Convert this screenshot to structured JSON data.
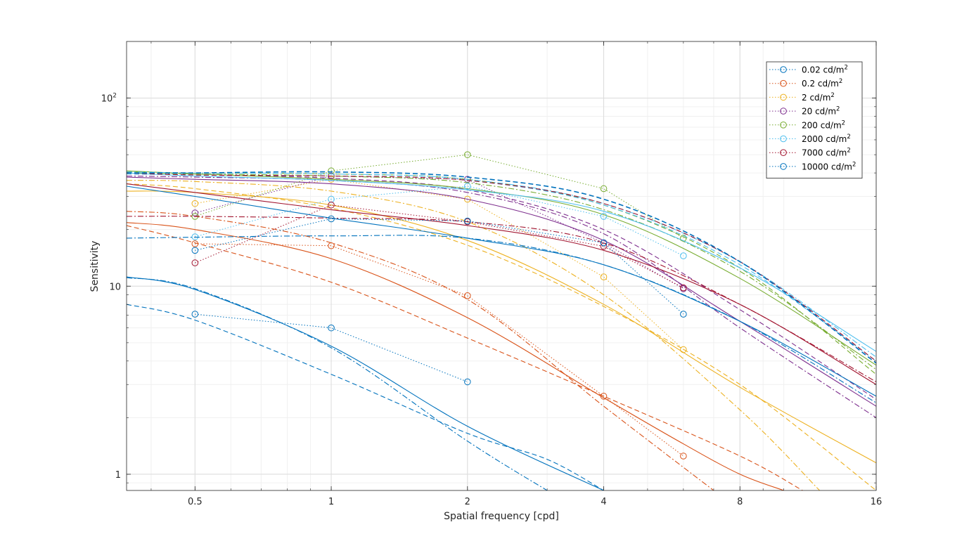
{
  "chart_data": {
    "type": "line",
    "title": "",
    "xlabel": "Spatial frequency [cpd]",
    "ylabel": "Sensitivity",
    "xscale": "log",
    "yscale": "log",
    "xlim": [
      0.353,
      16
    ],
    "ylim": [
      0.82,
      200
    ],
    "xticks": [
      0.5,
      1,
      2,
      4,
      8,
      16
    ],
    "xtick_labels": [
      "0.5",
      "1",
      "2",
      "4",
      "8",
      "16"
    ],
    "yticks": [
      1,
      10,
      100
    ],
    "ytick_labels": [
      {
        "base": "1",
        "exp": ""
      },
      {
        "base": "10",
        "exp": ""
      },
      {
        "base": "10",
        "exp": "2"
      }
    ],
    "grid": true,
    "legend_position": "top-right",
    "series": [
      {
        "name": "0.02 cd/m",
        "sup": "2",
        "color": "#0072BD",
        "measured": [
          [
            0.5,
            7.1
          ],
          [
            1,
            6.0
          ],
          [
            2,
            3.1
          ]
        ],
        "fit_solid": [
          [
            0.353,
            11.2
          ],
          [
            0.5,
            9.6
          ],
          [
            1,
            4.8
          ],
          [
            2,
            1.8
          ],
          [
            4,
            0.82
          ]
        ],
        "fit_dashed": [
          [
            0.353,
            8.0
          ],
          [
            0.5,
            6.6
          ],
          [
            1,
            3.4
          ],
          [
            2,
            1.65
          ],
          [
            3,
            1.2
          ],
          [
            4,
            0.82
          ]
        ],
        "fit_dashdot": [
          [
            0.353,
            11.1
          ],
          [
            0.5,
            9.7
          ],
          [
            1,
            4.7
          ],
          [
            2,
            1.5
          ],
          [
            3,
            0.82
          ]
        ]
      },
      {
        "name": "0.2 cd/m",
        "sup": "2",
        "color": "#D95319",
        "measured": [
          [
            0.5,
            16.8
          ],
          [
            1,
            16.4
          ],
          [
            2,
            8.9
          ],
          [
            4,
            2.6
          ],
          [
            6,
            1.25
          ]
        ],
        "fit_solid": [
          [
            0.353,
            21.8
          ],
          [
            0.5,
            20.0
          ],
          [
            1,
            14.0
          ],
          [
            2,
            6.8
          ],
          [
            4,
            2.55
          ],
          [
            6,
            1.45
          ],
          [
            8,
            1.0
          ],
          [
            10,
            0.82
          ]
        ],
        "fit_dashed": [
          [
            0.353,
            21.0
          ],
          [
            0.5,
            17.0
          ],
          [
            1,
            10.5
          ],
          [
            2,
            5.3
          ],
          [
            4,
            2.6
          ],
          [
            8,
            1.25
          ],
          [
            11,
            0.82
          ]
        ],
        "fit_dashdot": [
          [
            0.353,
            25.0
          ],
          [
            0.5,
            23.5
          ],
          [
            1,
            17.0
          ],
          [
            2,
            8.5
          ],
          [
            4,
            2.3
          ],
          [
            7,
            0.82
          ]
        ]
      },
      {
        "name": "2 cd/m",
        "sup": "2",
        "color": "#EDB120",
        "measured": [
          [
            0.5,
            27.5
          ],
          [
            1,
            37.0
          ],
          [
            2,
            29.0
          ],
          [
            4,
            11.2
          ],
          [
            6,
            4.6
          ]
        ],
        "fit_solid": [
          [
            0.353,
            32.0
          ],
          [
            0.5,
            31.5
          ],
          [
            1,
            27.0
          ],
          [
            2,
            17.5
          ],
          [
            4,
            8.0
          ],
          [
            8,
            2.9
          ],
          [
            16,
            1.15
          ]
        ],
        "fit_dashed": [
          [
            0.353,
            35.0
          ],
          [
            0.5,
            33.0
          ],
          [
            1,
            26.0
          ],
          [
            2,
            16.5
          ],
          [
            4,
            7.8
          ],
          [
            8,
            3.0
          ],
          [
            16,
            0.82
          ]
        ],
        "fit_dashdot": [
          [
            0.353,
            36.5
          ],
          [
            0.5,
            36.0
          ],
          [
            1,
            32.0
          ],
          [
            2,
            22.0
          ],
          [
            4,
            9.0
          ],
          [
            8,
            2.2
          ],
          [
            12,
            0.82
          ]
        ]
      },
      {
        "name": "20 cd/m",
        "sup": "2",
        "color": "#7E2F8E",
        "measured": [
          [
            0.5,
            24.5
          ],
          [
            1,
            38.5
          ],
          [
            2,
            37.0
          ],
          [
            4,
            17.0
          ],
          [
            6,
            9.7
          ]
        ],
        "fit_solid": [
          [
            0.353,
            38.0
          ],
          [
            0.5,
            37.0
          ],
          [
            1,
            35.0
          ],
          [
            2,
            29.0
          ],
          [
            4,
            17.5
          ],
          [
            8,
            6.5
          ],
          [
            16,
            2.3
          ]
        ],
        "fit_dashed": [
          [
            0.353,
            39.5
          ],
          [
            0.5,
            39.0
          ],
          [
            1,
            37.5
          ],
          [
            2,
            32.5
          ],
          [
            4,
            20.0
          ],
          [
            8,
            7.5
          ],
          [
            16,
            2.5
          ]
        ],
        "fit_dashdot": [
          [
            0.353,
            38.5
          ],
          [
            0.5,
            38.0
          ],
          [
            1,
            36.5
          ],
          [
            2,
            31.5
          ],
          [
            4,
            19.0
          ],
          [
            8,
            6.0
          ],
          [
            16,
            2.0
          ]
        ]
      },
      {
        "name": "200 cd/m",
        "sup": "2",
        "color": "#77AC30",
        "measured": [
          [
            0.5,
            23.5
          ],
          [
            1,
            41.0
          ],
          [
            2,
            50.0
          ],
          [
            4,
            33.0
          ],
          [
            6,
            18.0
          ]
        ],
        "fit_solid": [
          [
            0.353,
            41.0
          ],
          [
            0.5,
            39.5
          ],
          [
            1,
            37.0
          ],
          [
            2,
            33.0
          ],
          [
            4,
            24.0
          ],
          [
            8,
            11.0
          ],
          [
            16,
            3.8
          ]
        ],
        "fit_dashed": [
          [
            0.353,
            40.5
          ],
          [
            0.5,
            40.0
          ],
          [
            1,
            39.5
          ],
          [
            2,
            37.0
          ],
          [
            4,
            27.0
          ],
          [
            8,
            12.5
          ],
          [
            16,
            3.4
          ]
        ],
        "fit_dashdot": [
          [
            0.353,
            40.0
          ],
          [
            0.5,
            39.5
          ],
          [
            1,
            38.5
          ],
          [
            2,
            35.5
          ],
          [
            4,
            25.5
          ],
          [
            8,
            12.0
          ],
          [
            16,
            3.6
          ]
        ]
      },
      {
        "name": "2000 cd/m",
        "sup": "2",
        "color": "#4DBEEE",
        "measured": [
          [
            0.5,
            18.3
          ],
          [
            1,
            29.0
          ],
          [
            2,
            34.0
          ],
          [
            4,
            23.5
          ],
          [
            6,
            14.5
          ]
        ],
        "fit_solid": [
          [
            0.353,
            40.0
          ],
          [
            0.5,
            38.5
          ],
          [
            1,
            36.5
          ],
          [
            2,
            32.5
          ],
          [
            4,
            25.0
          ],
          [
            8,
            12.5
          ],
          [
            16,
            4.5
          ]
        ],
        "fit_dashed": [
          [
            0.353,
            39.5
          ],
          [
            0.5,
            39.0
          ],
          [
            1,
            38.5
          ],
          [
            2,
            36.5
          ],
          [
            4,
            27.0
          ],
          [
            8,
            13.0
          ],
          [
            16,
            4.0
          ]
        ],
        "fit_dashdot": [
          [
            0.353,
            40.5
          ],
          [
            0.5,
            40.0
          ],
          [
            1,
            39.5
          ],
          [
            2,
            37.0
          ],
          [
            4,
            27.5
          ],
          [
            8,
            13.5
          ],
          [
            16,
            4.2
          ]
        ]
      },
      {
        "name": "7000 cd/m",
        "sup": "2",
        "color": "#A2142F",
        "measured": [
          [
            0.5,
            13.3
          ],
          [
            1,
            27.0
          ],
          [
            2,
            22.0
          ],
          [
            4,
            16.3
          ],
          [
            6,
            9.8
          ]
        ],
        "fit_solid": [
          [
            0.353,
            35.0
          ],
          [
            0.5,
            31.5
          ],
          [
            1,
            25.5
          ],
          [
            2,
            21.0
          ],
          [
            4,
            15.5
          ],
          [
            8,
            8.0
          ],
          [
            16,
            3.0
          ]
        ],
        "fit_dashed": [
          [
            0.353,
            40.0
          ],
          [
            0.5,
            39.0
          ],
          [
            1,
            38.5
          ],
          [
            2,
            36.5
          ],
          [
            4,
            27.5
          ],
          [
            8,
            13.5
          ],
          [
            16,
            4.0
          ]
        ],
        "fit_dashdot": [
          [
            0.353,
            23.5
          ],
          [
            0.5,
            23.5
          ],
          [
            1,
            23.0
          ],
          [
            2,
            22.0
          ],
          [
            4,
            17.0
          ],
          [
            8,
            8.0
          ],
          [
            16,
            3.1
          ]
        ]
      },
      {
        "name": "10000 cd/m",
        "sup": "2",
        "color": "#0072BD",
        "measured": [
          [
            0.5,
            15.5
          ],
          [
            1,
            22.8
          ],
          [
            2,
            22.2
          ],
          [
            4,
            17.0
          ],
          [
            6,
            7.1
          ]
        ],
        "fit_solid": [
          [
            0.353,
            34.0
          ],
          [
            0.5,
            30.0
          ],
          [
            1,
            23.0
          ],
          [
            2,
            18.0
          ],
          [
            4,
            13.0
          ],
          [
            8,
            6.5
          ],
          [
            16,
            2.6
          ]
        ],
        "fit_dashed": [
          [
            0.353,
            40.0
          ],
          [
            0.5,
            40.0
          ],
          [
            1,
            40.5
          ],
          [
            2,
            38.0
          ],
          [
            4,
            29.0
          ],
          [
            8,
            13.5
          ],
          [
            16,
            3.9
          ]
        ],
        "fit_dashdot": [
          [
            0.353,
            18.0
          ],
          [
            0.5,
            18.2
          ],
          [
            1,
            18.5
          ],
          [
            2,
            18.0
          ],
          [
            4,
            13.0
          ],
          [
            8,
            6.5
          ],
          [
            16,
            2.4
          ]
        ]
      }
    ]
  }
}
